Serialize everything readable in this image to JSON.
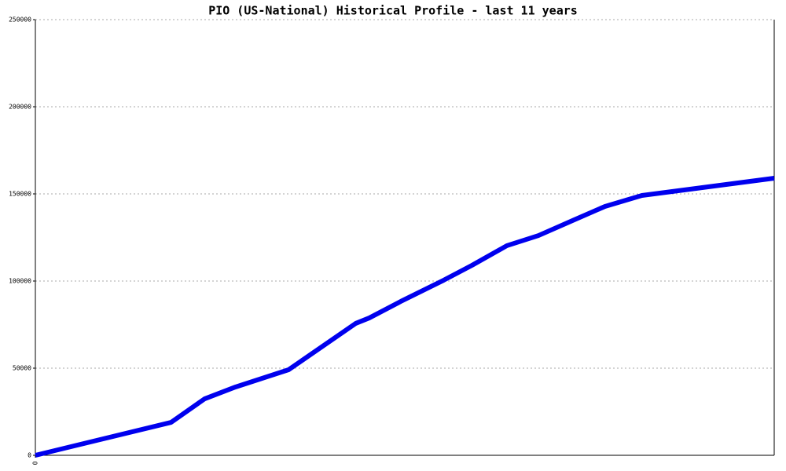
{
  "chart_data": {
    "type": "line",
    "title": "PIO (US-National) Historical Profile - last 11 years",
    "x": [
      0,
      2.02,
      2.52,
      2.98,
      3.77,
      4.77,
      4.97,
      5.44,
      6.08,
      6.5,
      7.02,
      7.49,
      8.02,
      8.48,
      9.03,
      11
    ],
    "series": [
      {
        "color": "#0000ee",
        "values": [
          0,
          18900,
          32400,
          39200,
          49100,
          75700,
          78800,
          88300,
          100500,
          109000,
          120300,
          126100,
          135100,
          142800,
          149100,
          159000
        ]
      }
    ],
    "xlim": [
      0,
      11
    ],
    "xticks": [
      0
    ],
    "ylim": [
      0,
      250000
    ],
    "yticks": [
      0,
      50000,
      100000,
      150000,
      200000,
      250000
    ],
    "grid": true
  }
}
